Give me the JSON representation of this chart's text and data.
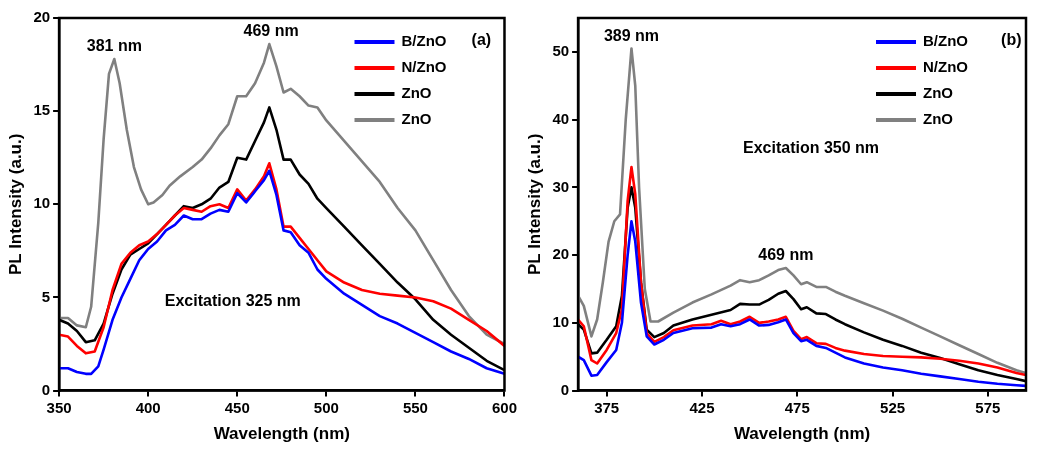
{
  "chart_data": [
    {
      "type": "line",
      "xlabel": "Wavelength (nm)",
      "ylabel": "PL Intensity (a.u.)",
      "xlim": [
        350,
        600
      ],
      "xticks": [
        350,
        400,
        450,
        500,
        550,
        600
      ],
      "ylim": [
        0,
        20
      ],
      "yticks": [
        0,
        5,
        10,
        15,
        20
      ],
      "grid": false,
      "legend": "top right",
      "marker": "none",
      "line_style": "solid",
      "annotations": [
        "(a)",
        "Excitation 325 nm",
        {
          "text": "381 nm",
          "x": 381,
          "y": 17.8
        },
        {
          "text": "469 nm",
          "x": 469,
          "y": 18.6
        }
      ],
      "series": [
        {
          "name": "B/ZnO",
          "color": "#0000ff",
          "x": [
            350,
            355,
            360,
            365,
            368,
            372,
            375,
            380,
            385,
            390,
            395,
            400,
            405,
            410,
            415,
            420,
            425,
            430,
            435,
            440,
            445,
            450,
            455,
            460,
            465,
            468,
            472,
            476,
            480,
            485,
            490,
            495,
            500,
            510,
            520,
            530,
            540,
            550,
            560,
            570,
            580,
            590,
            600
          ],
          "values": [
            1.2,
            1.2,
            1.0,
            0.9,
            0.9,
            1.3,
            2.2,
            3.8,
            5.0,
            6.0,
            7.0,
            7.6,
            8.0,
            8.6,
            8.9,
            9.4,
            9.2,
            9.2,
            9.5,
            9.7,
            9.6,
            10.6,
            10.1,
            10.7,
            11.3,
            11.8,
            10.5,
            8.6,
            8.5,
            7.8,
            7.4,
            6.5,
            6.0,
            5.2,
            4.6,
            4.0,
            3.6,
            3.1,
            2.6,
            2.1,
            1.7,
            1.2,
            0.9
          ]
        },
        {
          "name": "N/ZnO",
          "color": "#ff0000",
          "x": [
            350,
            355,
            360,
            365,
            370,
            375,
            380,
            385,
            390,
            395,
            400,
            405,
            410,
            415,
            420,
            425,
            430,
            435,
            440,
            445,
            450,
            455,
            460,
            465,
            468,
            472,
            476,
            480,
            485,
            490,
            495,
            500,
            510,
            520,
            530,
            540,
            550,
            560,
            570,
            580,
            590,
            600
          ],
          "values": [
            3.0,
            2.9,
            2.4,
            2.0,
            2.1,
            3.4,
            5.4,
            6.8,
            7.4,
            7.8,
            8.0,
            8.4,
            8.9,
            9.4,
            9.8,
            9.7,
            9.6,
            9.9,
            10.0,
            9.8,
            10.8,
            10.2,
            10.8,
            11.5,
            12.2,
            10.8,
            8.8,
            8.8,
            8.2,
            7.6,
            7.0,
            6.4,
            5.8,
            5.4,
            5.2,
            5.1,
            5.0,
            4.8,
            4.4,
            3.8,
            3.2,
            2.4
          ]
        },
        {
          "name": "ZnO",
          "color": "#000000",
          "x": [
            350,
            355,
            360,
            365,
            370,
            375,
            380,
            385,
            390,
            395,
            400,
            405,
            410,
            415,
            420,
            425,
            430,
            435,
            440,
            445,
            450,
            455,
            460,
            465,
            468,
            472,
            476,
            480,
            485,
            490,
            495,
            500,
            510,
            520,
            530,
            540,
            550,
            560,
            570,
            580,
            590,
            600
          ],
          "values": [
            3.8,
            3.6,
            3.2,
            2.6,
            2.7,
            3.6,
            5.2,
            6.5,
            7.3,
            7.6,
            7.9,
            8.4,
            8.9,
            9.4,
            9.9,
            9.8,
            10.0,
            10.3,
            10.9,
            11.2,
            12.5,
            12.4,
            13.4,
            14.4,
            15.2,
            14.0,
            12.4,
            12.4,
            11.6,
            11.1,
            10.3,
            9.8,
            8.8,
            7.8,
            6.8,
            5.8,
            4.9,
            3.8,
            3.0,
            2.3,
            1.6,
            1.1
          ]
        },
        {
          "name": "ZnO",
          "color": "#808080",
          "x": [
            350,
            355,
            360,
            365,
            368,
            372,
            375,
            378,
            381,
            384,
            388,
            392,
            396,
            400,
            403,
            408,
            412,
            418,
            425,
            430,
            435,
            440,
            445,
            450,
            455,
            460,
            465,
            468,
            472,
            476,
            480,
            485,
            490,
            495,
            500,
            510,
            520,
            530,
            540,
            550,
            560,
            570,
            580,
            590,
            600
          ],
          "values": [
            3.9,
            3.9,
            3.5,
            3.4,
            4.5,
            9.0,
            13.5,
            17.0,
            17.8,
            16.5,
            14.0,
            12.0,
            10.8,
            10.0,
            10.1,
            10.5,
            11.0,
            11.5,
            12.0,
            12.4,
            13.0,
            13.7,
            14.3,
            15.8,
            15.8,
            16.5,
            17.6,
            18.6,
            17.4,
            16.0,
            16.2,
            15.8,
            15.3,
            15.2,
            14.5,
            13.4,
            12.3,
            11.2,
            9.8,
            8.6,
            7.0,
            5.4,
            4.0,
            3.0,
            2.5
          ]
        }
      ]
    },
    {
      "type": "line",
      "xlabel": "Wavelength (nm)",
      "ylabel": "PL Intensity (a.u.)",
      "xlim": [
        360,
        595
      ],
      "xticks": [
        375,
        425,
        475,
        525,
        575
      ],
      "ylim": [
        0,
        55
      ],
      "yticks": [
        0,
        10,
        20,
        30,
        40,
        50
      ],
      "grid": false,
      "legend": "top right",
      "marker": "none",
      "line_style": "solid",
      "annotations": [
        "(b)",
        "Excitation 350 nm",
        {
          "text": "389 nm",
          "x": 388,
          "y": 50.5
        },
        {
          "text": "469 nm",
          "x": 469,
          "y": 18.1
        }
      ],
      "series": [
        {
          "name": "B/ZnO",
          "color": "#0000ff",
          "x": [
            360,
            363,
            367,
            370,
            375,
            380,
            383,
            386,
            388,
            390,
            393,
            396,
            400,
            405,
            410,
            420,
            430,
            435,
            440,
            445,
            450,
            455,
            460,
            465,
            469,
            473,
            477,
            480,
            485,
            490,
            495,
            500,
            510,
            520,
            530,
            540,
            550,
            560,
            570,
            580,
            590,
            595
          ],
          "values": [
            5,
            4.5,
            2.2,
            2.3,
            4.2,
            6,
            10,
            20,
            25,
            22,
            13,
            8,
            6.8,
            7.5,
            8.5,
            9.2,
            9.3,
            9.8,
            9.5,
            9.8,
            10.5,
            9.6,
            9.7,
            10.1,
            10.5,
            8.5,
            7.3,
            7.5,
            6.6,
            6.3,
            5.6,
            4.9,
            4.0,
            3.4,
            3.0,
            2.5,
            2.1,
            1.7,
            1.3,
            1.0,
            0.8,
            0.7
          ]
        },
        {
          "name": "N/ZnO",
          "color": "#ff0000",
          "x": [
            360,
            363,
            367,
            370,
            375,
            380,
            383,
            386,
            388,
            390,
            393,
            396,
            400,
            405,
            410,
            420,
            430,
            435,
            440,
            445,
            450,
            455,
            460,
            465,
            469,
            473,
            477,
            480,
            485,
            490,
            495,
            500,
            510,
            520,
            530,
            540,
            550,
            560,
            570,
            580,
            590,
            595
          ],
          "values": [
            10.5,
            9.5,
            4.5,
            4.0,
            6.0,
            8.5,
            12,
            28,
            33,
            29,
            16,
            8.5,
            7.2,
            7.9,
            8.9,
            9.6,
            9.8,
            10.3,
            9.8,
            10.2,
            10.9,
            10.0,
            10.2,
            10.5,
            10.9,
            8.8,
            7.6,
            7.9,
            7.0,
            6.9,
            6.3,
            5.9,
            5.4,
            5.1,
            5.0,
            4.9,
            4.7,
            4.4,
            4.0,
            3.4,
            2.6,
            2.3
          ]
        },
        {
          "name": "ZnO",
          "color": "#000000",
          "x": [
            360,
            363,
            367,
            370,
            375,
            380,
            383,
            386,
            388,
            390,
            393,
            396,
            400,
            405,
            410,
            420,
            430,
            440,
            445,
            450,
            455,
            460,
            465,
            469,
            473,
            477,
            480,
            485,
            490,
            495,
            500,
            510,
            520,
            530,
            540,
            550,
            560,
            570,
            580,
            590,
            595
          ],
          "values": [
            9.8,
            9,
            5.5,
            5.6,
            7.5,
            9.5,
            14,
            27,
            30,
            27,
            16,
            9,
            7.9,
            8.5,
            9.6,
            10.5,
            11.2,
            11.9,
            12.8,
            12.7,
            12.7,
            13.4,
            14.3,
            14.7,
            13.5,
            12.0,
            12.3,
            11.4,
            11.3,
            10.5,
            9.8,
            8.6,
            7.5,
            6.6,
            5.6,
            4.8,
            3.9,
            3.0,
            2.3,
            1.7,
            1.4
          ]
        },
        {
          "name": "ZnO",
          "color": "#808080",
          "x": [
            360,
            363,
            367,
            370,
            373,
            376,
            379,
            382,
            385,
            388,
            390,
            392,
            395,
            398,
            402,
            410,
            420,
            430,
            440,
            445,
            450,
            455,
            460,
            465,
            469,
            473,
            477,
            480,
            485,
            490,
            495,
            500,
            510,
            520,
            530,
            540,
            550,
            560,
            570,
            580,
            590,
            595
          ],
          "values": [
            14,
            12.5,
            8.0,
            10.5,
            16,
            22,
            25,
            26,
            40,
            50.5,
            45,
            30,
            15,
            10.2,
            10.2,
            11.5,
            13.0,
            14.2,
            15.5,
            16.3,
            16.0,
            16.3,
            17.0,
            17.8,
            18.1,
            17.0,
            15.7,
            16.0,
            15.3,
            15.3,
            14.6,
            14.0,
            12.9,
            11.8,
            10.6,
            9.3,
            8.0,
            6.7,
            5.4,
            4.1,
            3.0,
            2.6
          ]
        }
      ]
    }
  ]
}
